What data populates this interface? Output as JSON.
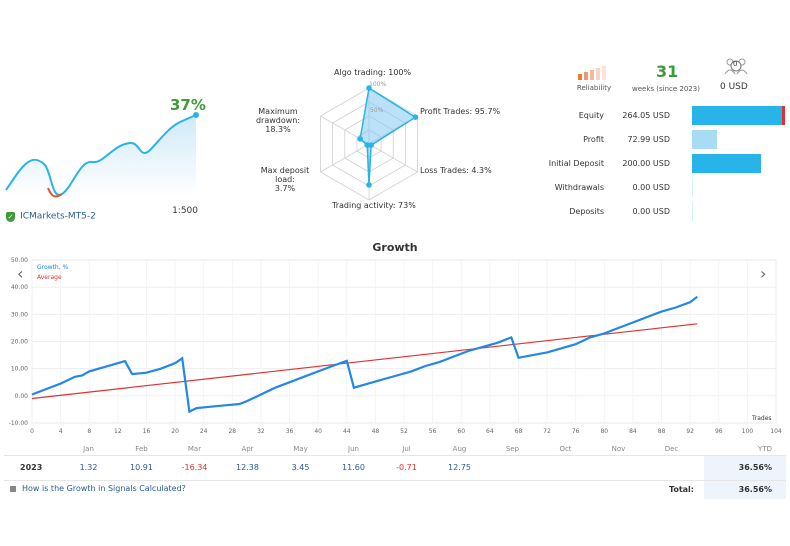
{
  "header": {
    "growth_percent": "37%",
    "account_name": "ICMarkets-MT5-2",
    "leverage": "1:500"
  },
  "radar": {
    "center_label_100": "100%",
    "center_label_50": "50%",
    "axes": [
      {
        "label": "Algo trading: 100%",
        "value": 100
      },
      {
        "label": "Profit Trades: 95.7%",
        "value": 95.7
      },
      {
        "label": "Loss Trades: 4.3%",
        "value": 4.3
      },
      {
        "label": "Trading activity: 73%",
        "value": 73
      },
      {
        "label": "Max deposit load:",
        "sublabel": "3.7%",
        "value": 3.7
      },
      {
        "label": "Maximum drawdown:",
        "sublabel": "18.3%",
        "value": 18.3
      }
    ]
  },
  "stats": {
    "reliability_label": "Reliability",
    "weeks_value": "31",
    "weeks_label": "weeks (since 2023)",
    "subscribers_count": "0",
    "subscribers_value": "0 USD",
    "rows": [
      {
        "label": "Equity",
        "value": "264.05 USD",
        "bar": 1.0
      },
      {
        "label": "Profit",
        "value": "72.99 USD",
        "bar": 0.276
      },
      {
        "label": "Initial Deposit",
        "value": "200.00 USD",
        "bar": 0.757
      },
      {
        "label": "Withdrawals",
        "value": "0.00 USD",
        "bar": 0
      },
      {
        "label": "Deposits",
        "value": "0.00 USD",
        "bar": 0
      }
    ]
  },
  "growth_chart": {
    "title": "Growth",
    "legend_growth": "Growth, %",
    "legend_average": "Average",
    "x_axis_label": "Trades",
    "y_ticks": [
      "50.00",
      "40.00",
      "30.00",
      "20.00",
      "10.00",
      "0.00",
      "-10.00"
    ],
    "x_ticks": [
      "0",
      "4",
      "8",
      "12",
      "16",
      "20",
      "24",
      "28",
      "32",
      "36",
      "40",
      "44",
      "48",
      "52",
      "56",
      "60",
      "64",
      "68",
      "72",
      "76",
      "80",
      "84",
      "88",
      "92",
      "96",
      "100",
      "104"
    ]
  },
  "chart_data": {
    "type": "line",
    "title": "Growth",
    "xlabel": "Trades",
    "ylabel": "",
    "xlim": [
      0,
      104
    ],
    "ylim": [
      -10,
      50
    ],
    "series": [
      {
        "name": "Growth, %",
        "x": [
          0,
          2,
          4,
          6,
          7,
          8,
          10,
          12,
          13,
          14,
          16,
          18,
          20,
          21,
          22,
          23,
          25,
          27,
          29,
          30,
          32,
          34,
          36,
          38,
          40,
          42,
          44,
          45,
          47,
          49,
          51,
          53,
          55,
          57,
          59,
          61,
          63,
          65,
          67,
          68,
          70,
          72,
          74,
          76,
          78,
          80,
          82,
          84,
          86,
          88,
          90,
          92,
          93
        ],
        "y": [
          0.5,
          2.5,
          4.5,
          7,
          7.5,
          9,
          10.5,
          12,
          12.8,
          8,
          8.5,
          10,
          12,
          13.8,
          -5.8,
          -4.5,
          -4,
          -3.5,
          -3,
          -2,
          0.5,
          3,
          5,
          7,
          9,
          11,
          12.9,
          3,
          4.5,
          6,
          7.5,
          9,
          11,
          12.5,
          14.5,
          16.5,
          18,
          19.5,
          21.5,
          14,
          15,
          16,
          17.5,
          19,
          21.5,
          23,
          25,
          27,
          29,
          31,
          32.5,
          34.5,
          36.5
        ]
      },
      {
        "name": "Average",
        "x": [
          0,
          93
        ],
        "y": [
          -1,
          26.5
        ]
      }
    ]
  },
  "table": {
    "months": [
      "Jan",
      "Feb",
      "Mar",
      "Apr",
      "May",
      "Jun",
      "Jul",
      "Aug",
      "Sep",
      "Oct",
      "Nov",
      "Dec"
    ],
    "ytd_label": "YTD",
    "year": "2023",
    "values": [
      "1.32",
      "10.91",
      "-16.34",
      "12.38",
      "3.45",
      "11.60",
      "-0.71",
      "12.75",
      "",
      "",
      "",
      ""
    ],
    "negatives": [
      false,
      false,
      true,
      false,
      false,
      false,
      true,
      false,
      false,
      false,
      false,
      false
    ],
    "ytd_value": "36.56%",
    "total_label": "Total:",
    "total_value": "36.56%",
    "help_link": "How is the Growth in Signals Calculated?"
  },
  "colors": {
    "accent_blue": "#28b4e8",
    "growth_line": "#2287e6",
    "average_line": "#e03030",
    "green": "#3c9c38"
  }
}
